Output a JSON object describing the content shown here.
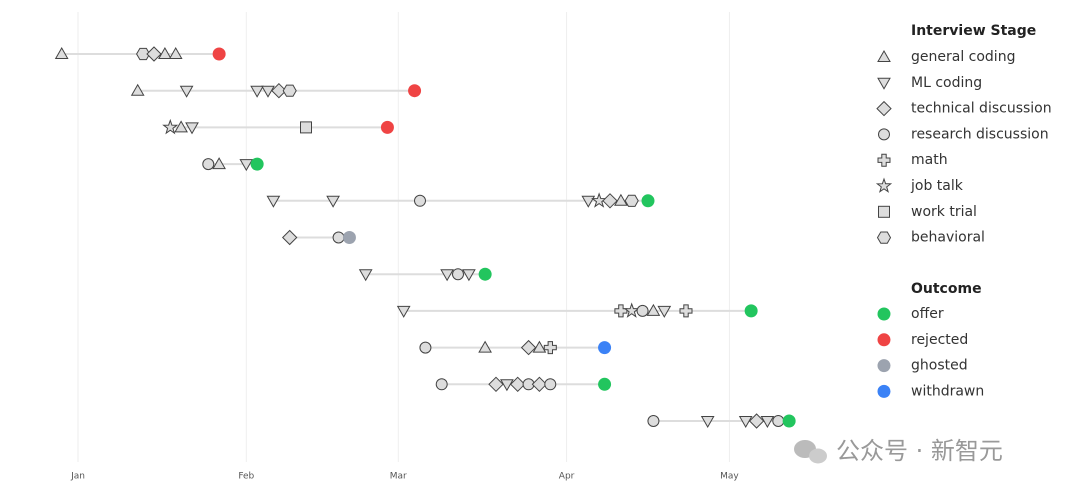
{
  "chart_data": {
    "type": "timeline",
    "xlim": [
      -7,
      133
    ],
    "xticks": [
      {
        "value": 0,
        "label": "Jan"
      },
      {
        "value": 31,
        "label": "Feb"
      },
      {
        "value": 59,
        "label": "Mar"
      },
      {
        "value": 90,
        "label": "Apr"
      },
      {
        "value": 120,
        "label": "May"
      }
    ],
    "grid": true,
    "stage_legend_title": "Interview Stage",
    "stages": [
      {
        "name": "general coding",
        "shape": "triangle-up"
      },
      {
        "name": "ML coding",
        "shape": "triangle-down"
      },
      {
        "name": "technical discussion",
        "shape": "diamond"
      },
      {
        "name": "research discussion",
        "shape": "circle"
      },
      {
        "name": "math",
        "shape": "plus"
      },
      {
        "name": "job talk",
        "shape": "star"
      },
      {
        "name": "work trial",
        "shape": "square"
      },
      {
        "name": "behavioral",
        "shape": "hexagon"
      }
    ],
    "outcome_legend_title": "Outcome",
    "outcomes": [
      {
        "name": "offer",
        "color": "#22c55e"
      },
      {
        "name": "rejected",
        "color": "#ef4444"
      },
      {
        "name": "ghosted",
        "color": "#9ca3af"
      },
      {
        "name": "withdrawn",
        "color": "#3b82f6"
      }
    ],
    "rows": [
      {
        "x": [
          -3,
          12,
          14,
          16,
          18
        ],
        "stages": [
          "general coding",
          "behavioral",
          "technical discussion",
          "general coding",
          "general coding"
        ],
        "outcome_x": 26,
        "outcome": "rejected"
      },
      {
        "x": [
          11,
          20,
          33,
          35,
          37,
          39
        ],
        "stages": [
          "general coding",
          "ML coding",
          "ML coding",
          "ML coding",
          "technical discussion",
          "behavioral"
        ],
        "outcome_x": 62,
        "outcome": "rejected"
      },
      {
        "x": [
          17,
          19,
          21,
          42
        ],
        "stages": [
          "job talk",
          "general coding",
          "ML coding",
          "work trial"
        ],
        "outcome_x": 57,
        "outcome": "rejected"
      },
      {
        "x": [
          24,
          26,
          31
        ],
        "stages": [
          "research discussion",
          "general coding",
          "ML coding"
        ],
        "outcome_x": 33,
        "outcome": "offer"
      },
      {
        "x": [
          36,
          47,
          63,
          94,
          96,
          98,
          100,
          102
        ],
        "stages": [
          "ML coding",
          "ML coding",
          "research discussion",
          "ML coding",
          "job talk",
          "technical discussion",
          "general coding",
          "behavioral"
        ],
        "outcome_x": 105,
        "outcome": "offer"
      },
      {
        "x": [
          39,
          48
        ],
        "stages": [
          "technical discussion",
          "research discussion"
        ],
        "outcome_x": 50,
        "outcome": "ghosted"
      },
      {
        "x": [
          53,
          68,
          70,
          72
        ],
        "stages": [
          "ML coding",
          "ML coding",
          "research discussion",
          "ML coding"
        ],
        "outcome_x": 75,
        "outcome": "offer"
      },
      {
        "x": [
          60,
          100,
          102,
          104,
          106,
          108,
          112
        ],
        "stages": [
          "ML coding",
          "math",
          "job talk",
          "research discussion",
          "general coding",
          "ML coding",
          "math"
        ],
        "outcome_x": 124,
        "outcome": "offer"
      },
      {
        "x": [
          64,
          75,
          83,
          85,
          87
        ],
        "stages": [
          "research discussion",
          "general coding",
          "technical discussion",
          "general coding",
          "math"
        ],
        "outcome_x": 97,
        "outcome": "withdrawn"
      },
      {
        "x": [
          67,
          77,
          79,
          81,
          83,
          85,
          87
        ],
        "stages": [
          "research discussion",
          "technical discussion",
          "ML coding",
          "technical discussion",
          "research discussion",
          "technical discussion",
          "research discussion"
        ],
        "outcome_x": 97,
        "outcome": "offer"
      },
      {
        "x": [
          106,
          116,
          123,
          125,
          127,
          129
        ],
        "stages": [
          "research discussion",
          "ML coding",
          "ML coding",
          "technical discussion",
          "ML coding",
          "research discussion"
        ],
        "outcome_x": 131,
        "outcome": "offer"
      }
    ],
    "watermark": "公众号 · 新智元"
  }
}
